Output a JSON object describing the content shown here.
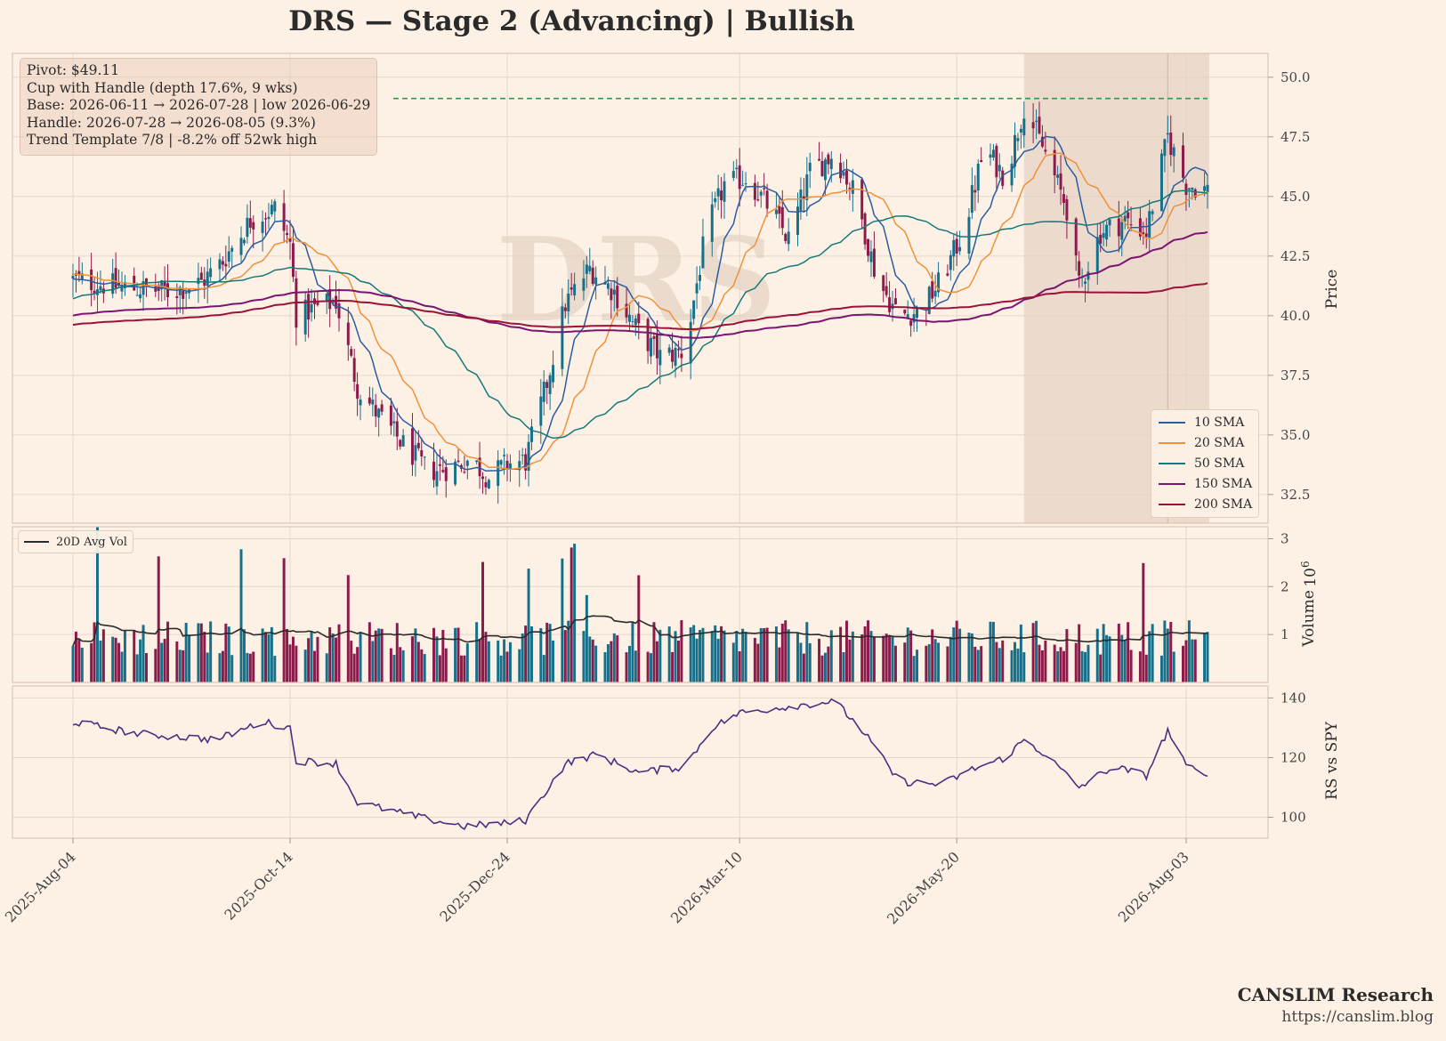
{
  "title": "DRS  —  Stage 2 (Advancing)  |  Bullish",
  "info": {
    "line1": "Pivot: $49.11",
    "line2": "Cup with Handle  (depth 17.6%, 9 wks)",
    "line3": "Base: 2026-06-11 → 2026-07-28  |  low 2026-06-29",
    "line4": "Handle: 2026-07-28 → 2026-08-05 (9.3%)",
    "line5": "Trend Template 7/8  |  -8.2% off 52wk high"
  },
  "watermark": "DRS",
  "brand": {
    "name": "CANSLIM Research",
    "url": "https://canslim.blog"
  },
  "colors": {
    "background": "#fdf1e6",
    "up": "#17708a",
    "down": "#8c1a4a",
    "sma10": "#2a5d9f",
    "sma20": "#f0913a",
    "sma50": "#17787a",
    "sma150": "#7a1570",
    "sma200": "#9a1238",
    "pivot": "#2e9a4e",
    "avgvol": "#2b2b2b",
    "rs": "#4b2f7f",
    "shade": "#e6d2c4"
  },
  "chart_data": [
    {
      "type": "candlestick",
      "panel": "price",
      "ylabel": "Price",
      "ylim": [
        31.3,
        51.0
      ],
      "yticks": [
        "32.5",
        "35.0",
        "37.5",
        "40.0",
        "42.5",
        "45.0",
        "47.5",
        "50.0"
      ],
      "x_start": "2025-08-04",
      "x_end": "2026-08-10",
      "x_ticks": [
        "2025-Aug-04",
        "2025-Oct-14",
        "2025-Dec-24",
        "2026-Mar-10",
        "2026-May-20",
        "2026-Aug-03"
      ],
      "pivot": 49.11,
      "base_shade": [
        "2026-06-11",
        "2026-08-10"
      ],
      "handle_marker": "2026-07-28",
      "price_keypoints": [
        [
          "2025-08-04",
          41.5
        ],
        [
          "2025-08-20",
          41.2
        ],
        [
          "2025-09-05",
          41.0
        ],
        [
          "2025-09-15",
          41.4
        ],
        [
          "2025-09-22",
          42.3
        ],
        [
          "2025-10-01",
          44.0
        ],
        [
          "2025-10-09",
          44.5
        ],
        [
          "2025-10-14",
          43.0
        ],
        [
          "2025-10-16",
          40.0
        ],
        [
          "2025-10-22",
          40.3
        ],
        [
          "2025-10-29",
          40.6
        ],
        [
          "2025-11-05",
          37.0
        ],
        [
          "2025-11-12",
          35.8
        ],
        [
          "2025-11-20",
          34.6
        ],
        [
          "2025-11-28",
          33.5
        ],
        [
          "2025-12-05",
          33.6
        ],
        [
          "2025-12-12",
          34.0
        ],
        [
          "2025-12-18",
          33.2
        ],
        [
          "2025-12-24",
          33.8
        ],
        [
          "2025-12-30",
          33.9
        ],
        [
          "2026-01-06",
          37.2
        ],
        [
          "2026-01-12",
          40.5
        ],
        [
          "2026-01-20",
          42.0
        ],
        [
          "2026-01-28",
          41.0
        ],
        [
          "2026-02-04",
          39.5
        ],
        [
          "2026-02-12",
          38.3
        ],
        [
          "2026-02-20",
          38.5
        ],
        [
          "2026-02-27",
          43.5
        ],
        [
          "2026-03-05",
          45.5
        ],
        [
          "2026-03-12",
          45.8
        ],
        [
          "2026-03-20",
          44.5
        ],
        [
          "2026-03-26",
          43.2
        ],
        [
          "2026-04-02",
          46.0
        ],
        [
          "2026-04-10",
          46.8
        ],
        [
          "2026-04-17",
          45.0
        ],
        [
          "2026-04-24",
          41.5
        ],
        [
          "2026-05-01",
          40.0
        ],
        [
          "2026-05-08",
          40.2
        ],
        [
          "2026-05-15",
          41.5
        ],
        [
          "2026-05-22",
          43.5
        ],
        [
          "2026-05-29",
          47.0
        ],
        [
          "2026-06-05",
          45.8
        ],
        [
          "2026-06-11",
          48.8
        ],
        [
          "2026-06-18",
          46.8
        ],
        [
          "2026-06-25",
          44.5
        ],
        [
          "2026-06-29",
          41.2
        ],
        [
          "2026-07-06",
          43.5
        ],
        [
          "2026-07-14",
          44.0
        ],
        [
          "2026-07-21",
          43.5
        ],
        [
          "2026-07-28",
          47.5
        ],
        [
          "2026-08-03",
          45.5
        ],
        [
          "2026-08-10",
          45.3
        ]
      ],
      "series": [
        {
          "name": "10 SMA",
          "window": 10
        },
        {
          "name": "20 SMA",
          "window": 20
        },
        {
          "name": "50 SMA",
          "window": 50
        },
        {
          "name": "150 SMA",
          "window": 150
        },
        {
          "name": "200 SMA",
          "window": 200
        }
      ],
      "legend": "lower-right"
    },
    {
      "type": "bar",
      "panel": "volume",
      "ylabel": "Volume",
      "unit": "10",
      "unit_exp": "6",
      "ylim": [
        0,
        3.25
      ],
      "yticks": [
        "1",
        "2",
        "3"
      ],
      "avg_series": "20D Avg Vol",
      "legend": "top-left"
    },
    {
      "type": "line",
      "panel": "rs",
      "ylabel": "RS vs SPY",
      "ylim": [
        93,
        144
      ],
      "yticks": [
        "100",
        "120",
        "140"
      ],
      "rs_keypoints": [
        [
          "2025-08-04",
          132
        ],
        [
          "2025-08-25",
          128
        ],
        [
          "2025-09-20",
          126
        ],
        [
          "2025-10-05",
          132
        ],
        [
          "2025-10-14",
          130
        ],
        [
          "2025-10-16",
          119
        ],
        [
          "2025-10-29",
          118
        ],
        [
          "2025-11-05",
          105
        ],
        [
          "2025-11-25",
          100
        ],
        [
          "2025-12-10",
          97
        ],
        [
          "2025-12-24",
          98
        ],
        [
          "2025-12-30",
          99
        ],
        [
          "2026-01-12",
          118
        ],
        [
          "2026-01-22",
          121
        ],
        [
          "2026-02-05",
          115
        ],
        [
          "2026-02-20",
          117
        ],
        [
          "2026-03-01",
          130
        ],
        [
          "2026-03-10",
          135
        ],
        [
          "2026-03-25",
          137
        ],
        [
          "2026-04-10",
          139
        ],
        [
          "2026-04-20",
          128
        ],
        [
          "2026-05-01",
          112
        ],
        [
          "2026-05-15",
          111
        ],
        [
          "2026-05-25",
          116
        ],
        [
          "2026-06-05",
          120
        ],
        [
          "2026-06-11",
          126
        ],
        [
          "2026-06-18",
          121
        ],
        [
          "2026-06-29",
          110
        ],
        [
          "2026-07-10",
          117
        ],
        [
          "2026-07-21",
          114
        ],
        [
          "2026-07-28",
          129
        ],
        [
          "2026-08-03",
          117
        ],
        [
          "2026-08-10",
          115
        ]
      ]
    }
  ]
}
